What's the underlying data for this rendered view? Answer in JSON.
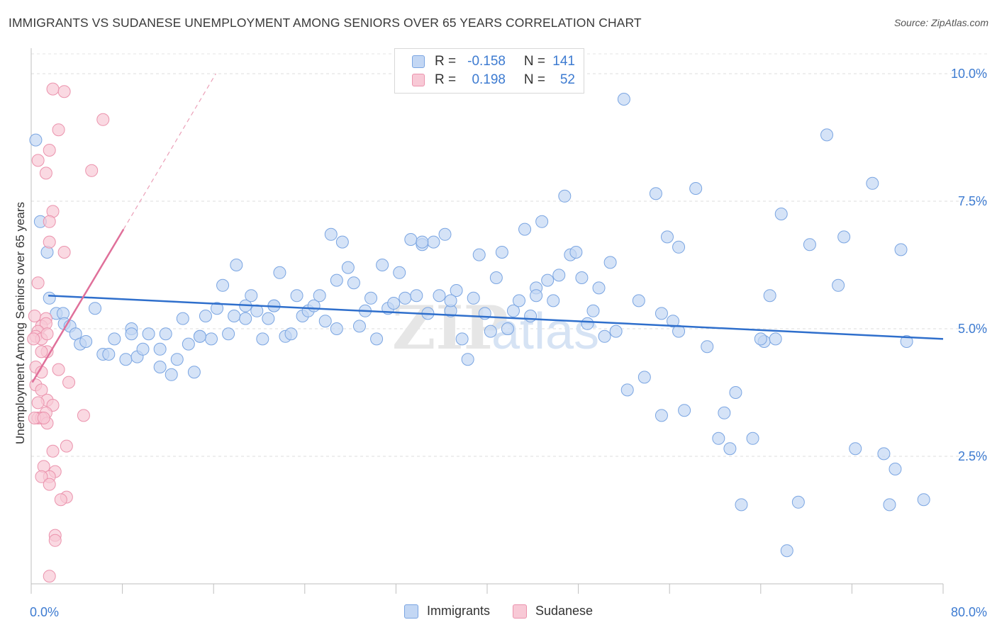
{
  "title": "IMMIGRANTS VS SUDANESE UNEMPLOYMENT AMONG SENIORS OVER 65 YEARS CORRELATION CHART",
  "source": "Source: ZipAtlas.com",
  "watermark": {
    "zip": "ZIP",
    "atlas": "atlas"
  },
  "legend": {
    "rows": [
      {
        "r_label": "R =",
        "r_value": "-0.158",
        "n_label": "N =",
        "n_value": "141",
        "fill": "#c3d7f4",
        "stroke": "#7aa5e2"
      },
      {
        "r_label": "R =",
        "r_value": "0.198",
        "n_label": "N =",
        "n_value": "52",
        "fill": "#f8c9d6",
        "stroke": "#eb93ad"
      }
    ]
  },
  "chart_data": {
    "type": "scatter",
    "xlabel": "",
    "ylabel": "Unemployment Among Seniors over 65 years",
    "xlim": [
      0,
      80
    ],
    "ylim": [
      0,
      10.5
    ],
    "x_tick_labels": [
      "0.0%",
      "80.0%"
    ],
    "y_ticks": [
      2.5,
      5.0,
      7.5,
      10.0
    ],
    "y_tick_labels": [
      "2.5%",
      "5.0%",
      "7.5%",
      "10.0%"
    ],
    "grid": true,
    "series": [
      {
        "name": "Immigrants",
        "color": "#7aa5e2",
        "fill": "#c3d7f4",
        "trend": {
          "x": [
            1.5,
            80
          ],
          "y": [
            5.65,
            4.8
          ]
        },
        "points": [
          [
            0.4,
            8.7
          ],
          [
            0.8,
            7.1
          ],
          [
            1.4,
            6.5
          ],
          [
            1.6,
            5.6
          ],
          [
            2.2,
            5.3
          ],
          [
            2.8,
            5.3
          ],
          [
            2.9,
            5.1
          ],
          [
            3.4,
            5.05
          ],
          [
            3.9,
            4.9
          ],
          [
            4.3,
            4.7
          ],
          [
            5.6,
            5.4
          ],
          [
            6.3,
            4.5
          ],
          [
            6.8,
            4.5
          ],
          [
            7.3,
            4.8
          ],
          [
            8.3,
            4.4
          ],
          [
            8.8,
            5.0
          ],
          [
            9.3,
            4.45
          ],
          [
            9.8,
            4.6
          ],
          [
            10.3,
            4.9
          ],
          [
            11.3,
            4.6
          ],
          [
            11.8,
            4.9
          ],
          [
            11.3,
            4.25
          ],
          [
            12.3,
            4.1
          ],
          [
            12.8,
            4.4
          ],
          [
            13.3,
            5.2
          ],
          [
            13.8,
            4.7
          ],
          [
            14.3,
            4.15
          ],
          [
            14.8,
            4.85
          ],
          [
            15.3,
            5.25
          ],
          [
            15.8,
            4.8
          ],
          [
            16.3,
            5.4
          ],
          [
            16.8,
            5.85
          ],
          [
            17.3,
            4.9
          ],
          [
            17.8,
            5.25
          ],
          [
            18.0,
            6.25
          ],
          [
            18.8,
            5.45
          ],
          [
            19.3,
            5.65
          ],
          [
            19.8,
            5.35
          ],
          [
            20.3,
            4.8
          ],
          [
            20.8,
            5.2
          ],
          [
            21.3,
            5.45
          ],
          [
            21.8,
            6.1
          ],
          [
            22.3,
            4.85
          ],
          [
            22.8,
            4.9
          ],
          [
            23.3,
            5.65
          ],
          [
            23.8,
            5.25
          ],
          [
            24.3,
            5.35
          ],
          [
            24.8,
            5.45
          ],
          [
            25.3,
            5.65
          ],
          [
            25.8,
            5.15
          ],
          [
            26.3,
            6.85
          ],
          [
            26.8,
            5.95
          ],
          [
            27.3,
            6.7
          ],
          [
            27.8,
            6.2
          ],
          [
            28.3,
            5.9
          ],
          [
            28.8,
            5.05
          ],
          [
            29.3,
            5.35
          ],
          [
            29.8,
            5.6
          ],
          [
            30.3,
            4.8
          ],
          [
            30.8,
            6.25
          ],
          [
            31.3,
            5.4
          ],
          [
            31.8,
            5.5
          ],
          [
            32.3,
            6.1
          ],
          [
            32.8,
            5.6
          ],
          [
            33.3,
            6.75
          ],
          [
            33.8,
            5.65
          ],
          [
            34.3,
            6.65
          ],
          [
            34.8,
            5.3
          ],
          [
            35.3,
            6.7
          ],
          [
            35.8,
            5.65
          ],
          [
            36.3,
            6.85
          ],
          [
            36.8,
            5.35
          ],
          [
            37.3,
            5.75
          ],
          [
            37.8,
            4.8
          ],
          [
            38.3,
            4.4
          ],
          [
            38.8,
            5.6
          ],
          [
            39.3,
            6.45
          ],
          [
            39.8,
            5.3
          ],
          [
            40.3,
            4.95
          ],
          [
            40.8,
            6.0
          ],
          [
            41.3,
            6.5
          ],
          [
            41.8,
            5.0
          ],
          [
            42.3,
            5.35
          ],
          [
            42.8,
            5.55
          ],
          [
            43.3,
            6.95
          ],
          [
            43.8,
            5.25
          ],
          [
            44.3,
            5.8
          ],
          [
            44.8,
            7.1
          ],
          [
            45.3,
            5.95
          ],
          [
            45.8,
            5.55
          ],
          [
            46.3,
            6.05
          ],
          [
            46.8,
            7.6
          ],
          [
            47.3,
            6.45
          ],
          [
            47.8,
            6.5
          ],
          [
            48.3,
            6.0
          ],
          [
            48.8,
            5.1
          ],
          [
            49.3,
            5.35
          ],
          [
            49.8,
            5.8
          ],
          [
            50.3,
            4.85
          ],
          [
            50.8,
            6.3
          ],
          [
            51.3,
            4.95
          ],
          [
            52.0,
            9.5
          ],
          [
            52.3,
            3.8
          ],
          [
            53.3,
            5.55
          ],
          [
            53.8,
            4.05
          ],
          [
            54.8,
            7.65
          ],
          [
            55.3,
            3.3
          ],
          [
            55.8,
            6.8
          ],
          [
            56.3,
            5.15
          ],
          [
            56.8,
            6.6
          ],
          [
            57.3,
            3.4
          ],
          [
            58.3,
            7.75
          ],
          [
            59.3,
            4.65
          ],
          [
            60.8,
            3.35
          ],
          [
            60.3,
            2.85
          ],
          [
            61.3,
            2.65
          ],
          [
            61.8,
            3.75
          ],
          [
            62.3,
            1.55
          ],
          [
            63.3,
            2.85
          ],
          [
            64.3,
            4.75
          ],
          [
            64.8,
            5.65
          ],
          [
            65.3,
            4.8
          ],
          [
            65.8,
            7.25
          ],
          [
            66.3,
            0.65
          ],
          [
            67.3,
            1.6
          ],
          [
            68.3,
            6.65
          ],
          [
            69.8,
            8.8
          ],
          [
            70.8,
            5.85
          ],
          [
            72.3,
            2.65
          ],
          [
            73.8,
            7.85
          ],
          [
            74.8,
            2.55
          ],
          [
            75.3,
            1.55
          ],
          [
            75.8,
            2.25
          ],
          [
            76.3,
            6.55
          ],
          [
            76.8,
            4.75
          ],
          [
            78.3,
            1.65
          ],
          [
            56.8,
            4.95
          ],
          [
            44.3,
            5.65
          ],
          [
            34.3,
            6.7
          ],
          [
            26.8,
            5.0
          ],
          [
            21.3,
            5.45
          ],
          [
            14.8,
            4.85
          ],
          [
            8.8,
            4.9
          ],
          [
            4.8,
            4.75
          ],
          [
            64.0,
            4.8
          ],
          [
            55.3,
            5.3
          ],
          [
            36.8,
            5.55
          ],
          [
            18.8,
            5.2
          ],
          [
            71.3,
            6.8
          ]
        ]
      },
      {
        "name": "Sudanese",
        "color": "#eb93ad",
        "fill": "#f8c9d6",
        "trend": {
          "x": [
            0.1,
            8.1
          ],
          "y": [
            3.95,
            6.95
          ],
          "dashed_to": [
            16.2,
            10.0
          ]
        },
        "points": [
          [
            1.9,
            9.7
          ],
          [
            2.9,
            9.65
          ],
          [
            6.3,
            9.1
          ],
          [
            2.4,
            8.9
          ],
          [
            1.6,
            8.5
          ],
          [
            0.6,
            8.3
          ],
          [
            1.3,
            8.05
          ],
          [
            5.3,
            8.1
          ],
          [
            1.9,
            7.3
          ],
          [
            1.6,
            7.1
          ],
          [
            1.6,
            6.7
          ],
          [
            2.9,
            6.5
          ],
          [
            0.6,
            5.9
          ],
          [
            0.3,
            5.25
          ],
          [
            1.3,
            5.2
          ],
          [
            0.9,
            5.05
          ],
          [
            1.3,
            5.1
          ],
          [
            0.6,
            4.95
          ],
          [
            0.4,
            4.85
          ],
          [
            0.9,
            4.8
          ],
          [
            1.4,
            4.55
          ],
          [
            0.9,
            4.55
          ],
          [
            0.4,
            4.25
          ],
          [
            2.4,
            4.2
          ],
          [
            0.9,
            4.15
          ],
          [
            3.3,
            3.95
          ],
          [
            0.4,
            3.9
          ],
          [
            0.9,
            3.8
          ],
          [
            1.4,
            3.6
          ],
          [
            0.6,
            3.55
          ],
          [
            1.9,
            3.5
          ],
          [
            1.3,
            3.35
          ],
          [
            0.6,
            3.25
          ],
          [
            0.9,
            3.25
          ],
          [
            0.3,
            3.25
          ],
          [
            1.4,
            3.15
          ],
          [
            4.6,
            3.3
          ],
          [
            3.1,
            2.7
          ],
          [
            1.9,
            2.6
          ],
          [
            1.1,
            2.3
          ],
          [
            2.1,
            2.2
          ],
          [
            1.6,
            2.1
          ],
          [
            0.9,
            2.1
          ],
          [
            1.6,
            1.95
          ],
          [
            3.1,
            1.7
          ],
          [
            2.6,
            1.65
          ],
          [
            2.1,
            0.95
          ],
          [
            2.1,
            0.85
          ],
          [
            1.6,
            0.15
          ],
          [
            1.1,
            3.25
          ],
          [
            0.2,
            4.8
          ],
          [
            1.4,
            4.9
          ]
        ]
      }
    ]
  },
  "bottom_legend": [
    {
      "label": "Immigrants",
      "fill": "#c3d7f4",
      "stroke": "#7aa5e2"
    },
    {
      "label": "Sudanese",
      "fill": "#f8c9d6",
      "stroke": "#eb93ad"
    }
  ]
}
